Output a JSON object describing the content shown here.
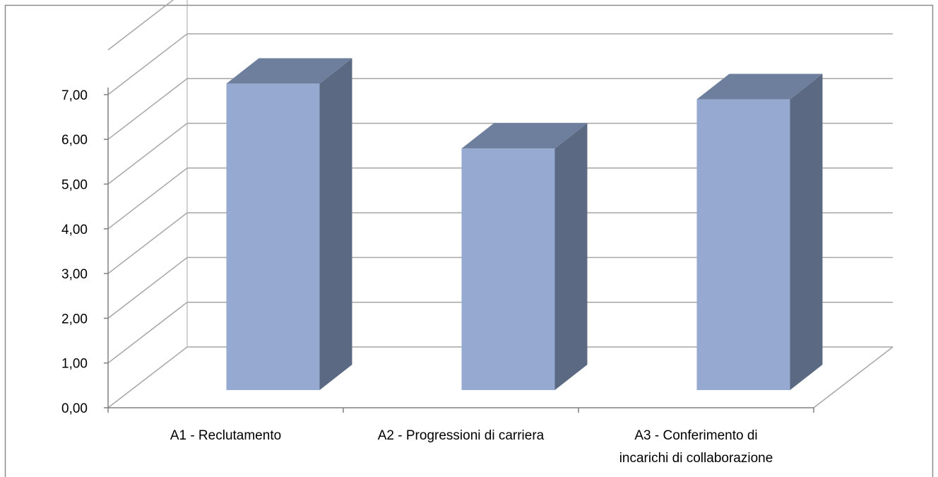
{
  "chart_data": {
    "type": "bar",
    "style": "3d-column",
    "categories": [
      [
        "A1 - Reclutamento"
      ],
      [
        "A2 - Progressioni di carriera"
      ],
      [
        "A3 - Conferimento di",
        "incarichi di collaborazione"
      ]
    ],
    "values": [
      6.85,
      5.4,
      6.5
    ],
    "y_tick_labels": [
      "0,00",
      "1,00",
      "2,00",
      "3,00",
      "4,00",
      "5,00",
      "6,00",
      "7,00"
    ],
    "ylim": [
      0,
      8
    ],
    "grid": true,
    "legend": "none",
    "colors": {
      "bar_front": "#95A9D1",
      "bar_top": "#6E7F9D",
      "bar_side": "#5B6982",
      "gridline": "#A6A6A6",
      "axis": "#808080",
      "frame": "#8C8C8C"
    }
  }
}
